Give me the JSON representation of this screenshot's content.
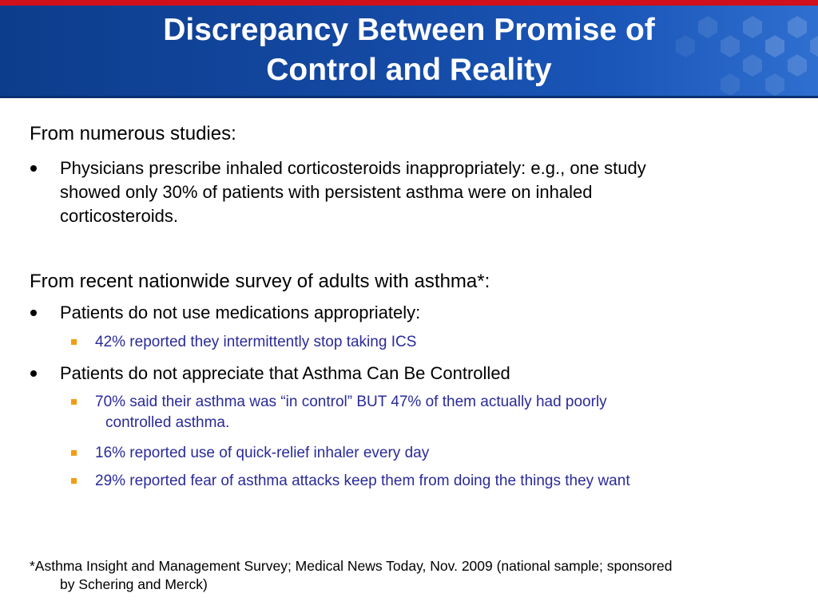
{
  "slide": {
    "title_line1": "Discrepancy Between Promise of",
    "title_line2": "Control and Reality"
  },
  "section1": {
    "heading": "From numerous studies:",
    "bullet1_line1": "Physicians prescribe inhaled corticosteroids inappropriately: e.g., one study",
    "bullet1_line2": "showed  only 30% of patients with persistent asthma were on inhaled",
    "bullet1_line3": "corticosteroids."
  },
  "section2": {
    "heading": "From recent nationwide survey of adults with asthma*:",
    "bullet1": "Patients do not use medications appropriately:",
    "bullet1_sub1": "42%  reported they intermittently stop taking ICS",
    "bullet2": "Patients do not appreciate that Asthma Can Be Controlled",
    "bullet2_sub1_line1": "70% said their asthma was “in control” BUT 47% of them actually had poorly",
    "bullet2_sub1_line2": "controlled asthma.",
    "bullet2_sub2": "16% reported use of quick-relief inhaler every day",
    "bullet2_sub3": "29% reported fear of asthma attacks keep them from doing the things they want"
  },
  "footnote": {
    "line1": "*Asthma Insight and Management Survey; Medical News Today, Nov. 2009 (national sample; sponsored",
    "line2": "by Schering and Merck)"
  },
  "colors": {
    "header_blue": "#1449a3",
    "top_bar_red": "#d0101a",
    "sub_bullet_text": "#2a2a9a",
    "sub_bullet_marker": "#f39c12"
  }
}
